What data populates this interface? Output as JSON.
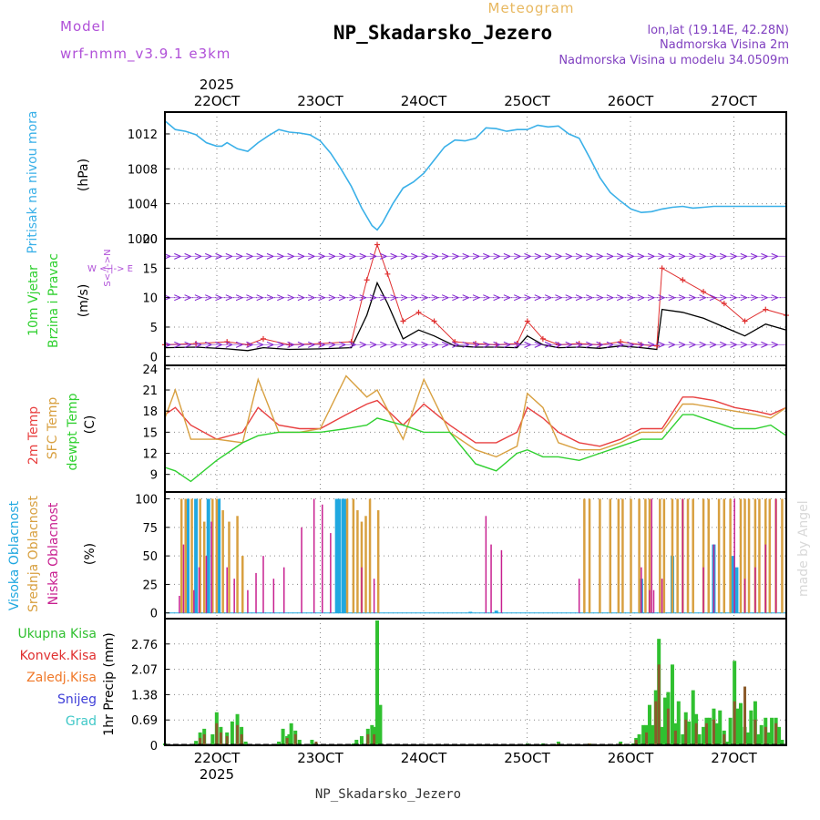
{
  "header": {
    "title": "NP_Skadarsko_Jezero",
    "subtitle": "Meteogram",
    "model_label": "Model",
    "model_name": "wrf-nmm_v3.9.1 e3km",
    "lonlat": "lon,lat (19.14E, 42.28N)",
    "elevation": "Nadmorska Visina 2m",
    "model_elevation": "Nadmorska Visina u modelu 34.0509m",
    "year_top": "2025",
    "year_bottom": "2025",
    "footer": "NP_Skadarsko_Jezero",
    "watermark": "made by Angel"
  },
  "colors": {
    "pressure": "#3ab0e8",
    "wind_speed": "#000000",
    "wind_gust": "#e03030",
    "t2m": "#e84040",
    "tsfc": "#d8a040",
    "dewpt": "#30d030",
    "high_cloud": "#20a8e0",
    "mid_cloud": "#d8a040",
    "low_cloud": "#c82090",
    "total_precip": "#30c030",
    "conv_precip": "#e03030",
    "frozen_precip": "#f07828",
    "snow": "#4040d8",
    "hail": "#40c8c8"
  },
  "dates": [
    "22OCT",
    "23OCT",
    "24OCT",
    "25OCT",
    "26OCT",
    "27OCT"
  ],
  "panels": {
    "pressure": {
      "label": "Pritisak na nivou mora",
      "unit": "(hPa)",
      "ticks": [
        "1000",
        "1004",
        "1008",
        "1012"
      ]
    },
    "wind": {
      "label1": "10m Vjetar",
      "label2": "Brzina i Pravac",
      "unit": "(m/s)",
      "ticks": [
        "0",
        "5",
        "10",
        "15",
        "20"
      ],
      "compass": "W <-|-> E",
      "compass2": "S<-|->N"
    },
    "temp": {
      "label1": "2m Temp",
      "label2": "SFC Temp",
      "label3": "dewpt Temp",
      "unit": "(C)",
      "ticks": [
        "9",
        "12",
        "15",
        "18",
        "21",
        "24"
      ]
    },
    "cloud": {
      "label1": "Visoka Oblacnost",
      "label2": "Srednja Oblacnost",
      "label3": "Niska Oblacnost",
      "unit": "(%)",
      "ticks": [
        "0",
        "25",
        "50",
        "75",
        "100"
      ]
    },
    "precip": {
      "legend": [
        "Ukupna Kisa",
        "Konvek.Kisa",
        "Zaledj.Kisa",
        "Snijeg",
        "Grad"
      ],
      "unit": "1hr Precip (mm)",
      "ticks": [
        "0",
        "0.69",
        "1.38",
        "2.07",
        "2.76"
      ]
    }
  },
  "chart_data": [
    {
      "type": "line",
      "title": "Pritisak na nivou mora",
      "ylabel": "hPa",
      "ylim": [
        1000,
        1014.5
      ],
      "xlim": [
        0,
        6
      ],
      "x": [
        0,
        0.1,
        0.2,
        0.3,
        0.4,
        0.5,
        0.55,
        0.6,
        0.7,
        0.8,
        0.9,
        1.0,
        1.1,
        1.2,
        1.3,
        1.4,
        1.5,
        1.6,
        1.7,
        1.8,
        1.9,
        2.0,
        2.05,
        2.1,
        2.2,
        2.3,
        2.4,
        2.5,
        2.6,
        2.7,
        2.8,
        2.9,
        3.0,
        3.1,
        3.2,
        3.3,
        3.4,
        3.5,
        3.6,
        3.7,
        3.8,
        3.9,
        4.0,
        4.1,
        4.2,
        4.3,
        4.4,
        4.5,
        4.6,
        4.7,
        4.8,
        4.9,
        5.0,
        5.1,
        5.2,
        5.3,
        5.4,
        5.5,
        5.6,
        5.7,
        5.8,
        5.9,
        6.0
      ],
      "values": [
        1013.5,
        1012.5,
        1012.3,
        1011.9,
        1011.0,
        1010.6,
        1010.6,
        1011.0,
        1010.3,
        1010.0,
        1011.0,
        1011.8,
        1012.5,
        1012.2,
        1012.1,
        1011.9,
        1011.2,
        1009.8,
        1008.0,
        1006.0,
        1003.5,
        1001.5,
        1001.0,
        1001.8,
        1004.0,
        1005.8,
        1006.5,
        1007.5,
        1009.0,
        1010.5,
        1011.3,
        1011.2,
        1011.5,
        1012.7,
        1012.6,
        1012.3,
        1012.5,
        1012.5,
        1013.0,
        1012.8,
        1012.9,
        1012.0,
        1011.5,
        1009.3,
        1007.0,
        1005.3,
        1004.3,
        1003.4,
        1003.0,
        1003.1,
        1003.4,
        1003.6,
        1003.7,
        1003.5,
        1003.6,
        1003.7,
        1003.7,
        1003.7,
        1003.7,
        1003.7,
        1003.7,
        1003.7,
        1003.7
      ]
    },
    {
      "type": "line",
      "title": "10m Vjetar Brzina i Pravac",
      "ylabel": "m/s",
      "ylim": [
        -1.5,
        20
      ],
      "x": [
        0,
        0.3,
        0.6,
        0.8,
        0.95,
        1.2,
        1.5,
        1.8,
        1.95,
        2.05,
        2.15,
        2.3,
        2.45,
        2.6,
        2.8,
        3.0,
        3.2,
        3.4,
        3.5,
        3.65,
        3.8,
        4.0,
        4.2,
        4.4,
        4.6,
        4.75,
        4.8,
        5.0,
        5.2,
        5.4,
        5.6,
        5.8,
        6.0
      ],
      "series": [
        {
          "name": "Brzina",
          "values": [
            1.5,
            1.6,
            1.3,
            1.0,
            1.5,
            1.2,
            1.3,
            1.5,
            7.0,
            12.5,
            9.0,
            3.0,
            4.5,
            3.5,
            1.8,
            1.6,
            1.6,
            1.5,
            3.5,
            2.0,
            1.5,
            1.6,
            1.4,
            1.8,
            1.5,
            1.2,
            8.0,
            7.5,
            6.5,
            5.0,
            3.5,
            5.5,
            4.5
          ]
        },
        {
          "name": "Udari",
          "values": [
            2.0,
            2.2,
            2.5,
            2.0,
            3.0,
            2.0,
            2.2,
            2.5,
            13.0,
            19.0,
            14.0,
            6.0,
            7.5,
            6.0,
            2.5,
            2.2,
            2.0,
            2.2,
            6.0,
            3.0,
            2.0,
            2.2,
            2.0,
            2.5,
            2.0,
            1.8,
            15.0,
            13.0,
            11.0,
            9.0,
            6.0,
            8.0,
            7.0
          ]
        }
      ]
    },
    {
      "type": "line",
      "title": "Temperature",
      "ylabel": "C",
      "ylim": [
        6.5,
        24.5
      ],
      "x": [
        0,
        0.1,
        0.25,
        0.5,
        0.75,
        0.9,
        1.1,
        1.3,
        1.5,
        1.75,
        1.95,
        2.05,
        2.3,
        2.5,
        2.75,
        3.0,
        3.2,
        3.4,
        3.5,
        3.65,
        3.8,
        4.0,
        4.2,
        4.4,
        4.6,
        4.8,
        5.0,
        5.1,
        5.3,
        5.5,
        5.7,
        5.85,
        6.0
      ],
      "series": [
        {
          "name": "2m Temp",
          "values": [
            17.5,
            18.5,
            16.0,
            14.0,
            15.0,
            18.5,
            16.0,
            15.5,
            15.5,
            17.5,
            19.0,
            19.5,
            16.0,
            19.0,
            16.0,
            13.5,
            13.5,
            15.0,
            18.5,
            17.0,
            15.0,
            13.5,
            13.0,
            14.0,
            15.5,
            15.5,
            20.0,
            20.0,
            19.5,
            18.5,
            18.0,
            17.5,
            18.5
          ]
        },
        {
          "name": "SFC Temp",
          "values": [
            17.0,
            21.0,
            14.0,
            14.0,
            13.5,
            22.5,
            15.0,
            15.0,
            15.5,
            23.0,
            20.0,
            21.0,
            14.0,
            22.5,
            15.0,
            12.5,
            11.5,
            13.0,
            20.5,
            18.5,
            13.5,
            12.5,
            12.5,
            13.5,
            15.0,
            15.0,
            19.0,
            19.0,
            18.5,
            18.0,
            17.5,
            17.0,
            18.5
          ]
        },
        {
          "name": "dewpt Temp",
          "values": [
            10.0,
            9.5,
            8.0,
            11.0,
            13.5,
            14.5,
            15.0,
            15.0,
            15.0,
            15.5,
            16.0,
            17.0,
            16.0,
            15.0,
            15.0,
            10.5,
            9.5,
            12.0,
            12.5,
            11.5,
            11.5,
            11.0,
            12.0,
            13.0,
            14.0,
            14.0,
            17.5,
            17.5,
            16.5,
            15.5,
            15.5,
            16.0,
            14.5
          ]
        }
      ]
    },
    {
      "type": "bar",
      "title": "Oblacnost",
      "ylabel": "%",
      "ylim": [
        -5,
        106
      ],
      "series": [
        {
          "name": "Visoka Oblacnost",
          "x": [
            0.22,
            0.3,
            0.42,
            0.52,
            1.66,
            1.68,
            1.72,
            1.75,
            2.95,
            3.2,
            4.6,
            4.9,
            5.3,
            5.48,
            5.52
          ],
          "values": [
            100,
            100,
            100,
            100,
            100,
            100,
            100,
            100,
            1,
            2,
            30,
            50,
            60,
            50,
            40
          ]
        },
        {
          "name": "Srednja Oblacnost",
          "x": [
            0.16,
            0.2,
            0.26,
            0.34,
            0.38,
            0.46,
            0.5,
            0.56,
            0.62,
            0.7,
            0.75,
            1.76,
            1.82,
            1.86,
            1.9,
            1.94,
            1.98,
            2.06,
            4.05,
            4.1,
            4.2,
            4.3,
            4.38,
            4.42,
            4.5,
            4.58,
            4.64,
            4.68,
            4.78,
            4.82,
            4.9,
            4.95,
            5.0,
            5.05,
            5.1,
            5.2,
            5.25,
            5.35,
            5.4,
            5.46,
            5.56,
            5.6,
            5.64,
            5.7,
            5.74,
            5.8,
            5.84,
            5.9,
            5.96
          ],
          "values": [
            100,
            100,
            100,
            100,
            80,
            100,
            100,
            90,
            80,
            85,
            50,
            100,
            100,
            90,
            80,
            85,
            100,
            90,
            100,
            100,
            100,
            100,
            100,
            100,
            100,
            100,
            100,
            100,
            100,
            100,
            100,
            100,
            100,
            100,
            100,
            100,
            100,
            100,
            100,
            100,
            100,
            100,
            100,
            100,
            100,
            100,
            100,
            100,
            100
          ]
        },
        {
          "name": "Niska Oblacnost",
          "x": [
            0.14,
            0.18,
            0.28,
            0.33,
            0.4,
            0.45,
            0.6,
            0.67,
            0.8,
            0.88,
            0.95,
            1.05,
            1.15,
            1.32,
            1.44,
            1.52,
            1.6,
            1.9,
            2.02,
            3.1,
            3.15,
            3.25,
            4.0,
            4.6,
            4.68,
            4.7,
            4.72,
            4.8,
            5.0,
            5.2,
            5.3,
            5.5,
            5.6,
            5.7,
            5.8,
            5.9
          ],
          "values": [
            15,
            60,
            20,
            40,
            50,
            80,
            40,
            30,
            20,
            35,
            50,
            30,
            40,
            75,
            100,
            95,
            70,
            40,
            30,
            85,
            60,
            55,
            30,
            40,
            20,
            100,
            20,
            30,
            100,
            40,
            60,
            100,
            30,
            40,
            60,
            100
          ]
        }
      ]
    },
    {
      "type": "bar",
      "title": "1hr Precip",
      "ylabel": "mm",
      "ylim": [
        0,
        3.45
      ],
      "series": [
        {
          "name": "Ukupna Kisa",
          "x": [
            0.0,
            0.3,
            0.34,
            0.38,
            0.46,
            0.5,
            0.54,
            0.6,
            0.65,
            0.7,
            0.74,
            0.78,
            1.1,
            1.14,
            1.18,
            1.2,
            1.22,
            1.26,
            1.3,
            1.42,
            1.46,
            1.82,
            1.85,
            1.9,
            1.96,
            2.0,
            2.02,
            2.05,
            2.08,
            3.5,
            3.65,
            3.8,
            4.1,
            4.4,
            4.52,
            4.55,
            4.58,
            4.62,
            4.65,
            4.68,
            4.71,
            4.74,
            4.77,
            4.8,
            4.83,
            4.86,
            4.9,
            4.93,
            4.96,
            5.0,
            5.03,
            5.06,
            5.1,
            5.13,
            5.16,
            5.2,
            5.23,
            5.26,
            5.3,
            5.33,
            5.36,
            5.4,
            5.43,
            5.46,
            5.5,
            5.53,
            5.56,
            5.6,
            5.63,
            5.66,
            5.7,
            5.73,
            5.76,
            5.8,
            5.83,
            5.86,
            5.9,
            5.93,
            5.96
          ],
          "values": [
            0.05,
            0.12,
            0.35,
            0.45,
            0.3,
            0.9,
            0.5,
            0.35,
            0.65,
            0.85,
            0.5,
            0.1,
            0.1,
            0.45,
            0.25,
            0.3,
            0.6,
            0.4,
            0.15,
            0.15,
            0.05,
            0.05,
            0.15,
            0.25,
            0.45,
            0.55,
            0.5,
            3.4,
            1.1,
            0.05,
            0.05,
            0.1,
            0.05,
            0.1,
            0.05,
            0.2,
            0.3,
            0.55,
            0.55,
            1.1,
            0.55,
            1.5,
            2.9,
            0.5,
            1.3,
            1.45,
            2.2,
            0.6,
            1.2,
            0.3,
            0.9,
            0.65,
            1.5,
            0.85,
            0.3,
            0.5,
            0.75,
            0.75,
            1.0,
            0.6,
            0.95,
            0.4,
            0.1,
            0.75,
            2.3,
            1.0,
            1.15,
            0.5,
            0.35,
            0.95,
            1.2,
            0.3,
            0.55,
            0.75,
            0.35,
            0.75,
            0.75,
            0.5,
            0.15
          ]
        },
        {
          "name": "Konvek.Kisa",
          "x": [
            0.34,
            0.38,
            0.5,
            0.54,
            0.6,
            0.7,
            0.74,
            1.18,
            1.26,
            1.46,
            1.96,
            2.02,
            3.8,
            4.1,
            4.4,
            4.55,
            4.65,
            4.74,
            4.77,
            4.86,
            4.93,
            5.03,
            5.13,
            5.23,
            5.3,
            5.4,
            5.5,
            5.6,
            5.7,
            5.8,
            5.9
          ],
          "values": [
            0.2,
            0.3,
            0.6,
            0.35,
            0.25,
            0.55,
            0.3,
            0.2,
            0.3,
            0.1,
            0.3,
            0.3,
            0.05,
            0.05,
            0.05,
            0.15,
            0.35,
            1.2,
            2.2,
            1.0,
            0.4,
            0.7,
            0.6,
            0.6,
            0.7,
            0.3,
            1.2,
            1.6,
            0.7,
            0.5,
            0.6
          ]
        }
      ]
    }
  ]
}
